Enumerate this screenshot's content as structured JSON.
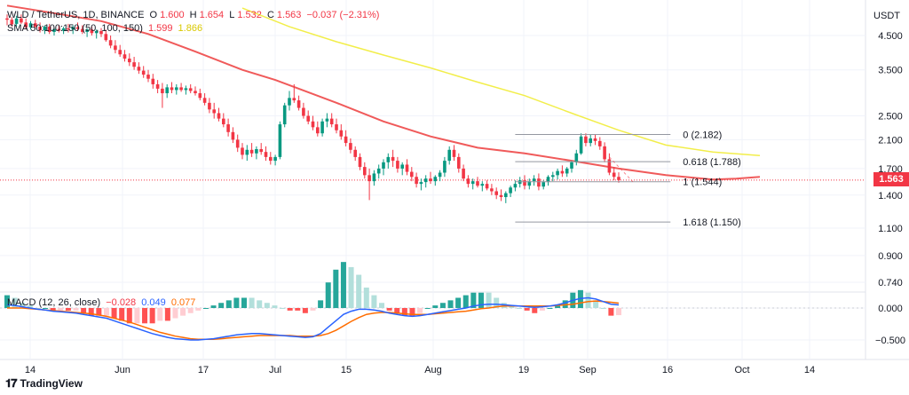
{
  "legend": {
    "symbol": "WLD / TetherUS, 1D, BINANCE",
    "o_label": "O",
    "o_value": "1.600",
    "h_label": "H",
    "h_value": "1.654",
    "l_label": "L",
    "l_value": "1.532",
    "c_label": "C",
    "c_value": "1.563",
    "change": "−0.037 (−2.31%)",
    "sma_label": "SMA 50:100:150 (50, 100, 150)",
    "sma_v1": "1.599",
    "sma_v2": "1.866",
    "macd_label": "MACD (12, 26, close)",
    "macd_v1": "−0.028",
    "macd_v2": "0.049",
    "macd_v3": "0.077"
  },
  "currency": "USDT",
  "price_tag": "1.563",
  "brand": "TradingView",
  "colors": {
    "up": "#089981",
    "down": "#f23645",
    "sma50": "#f05a5a",
    "sma100": "#f2ee4a",
    "macd": "#2962ff",
    "signal": "#ff6d00",
    "grid": "#f0f3fa",
    "text": "#131722"
  },
  "chart_data": {
    "type": "candlestick",
    "title": "WLD / TetherUS, 1D, BINANCE",
    "scale": "log",
    "price_axis_ticks": [
      4.5,
      3.5,
      2.5,
      2.1,
      1.7,
      1.4,
      1.1,
      0.9,
      0.74
    ],
    "time_axis_labels": [
      "14",
      "Jun",
      "17",
      "Jul",
      "15",
      "Aug",
      "19",
      "Sep",
      "16",
      "Oct",
      "14"
    ],
    "macd_axis_ticks": [
      0.0,
      -0.5
    ],
    "macd_axis_labels": [
      "0.000",
      "−0.500"
    ],
    "price_tick_labels": [
      "4.500",
      "3.500",
      "2.500",
      "2.100",
      "1.700",
      "1.400",
      "1.100",
      "0.900",
      "0.740"
    ],
    "ohlc": [
      [
        5.1,
        5.25,
        4.85,
        5.05
      ],
      [
        5.05,
        5.15,
        4.8,
        4.88
      ],
      [
        4.9,
        5.2,
        4.8,
        5.1
      ],
      [
        5.1,
        5.25,
        4.9,
        4.95
      ],
      [
        4.95,
        5.1,
        4.7,
        4.78
      ],
      [
        4.78,
        5.0,
        4.7,
        4.92
      ],
      [
        4.92,
        5.05,
        4.75,
        4.8
      ],
      [
        4.8,
        4.95,
        4.6,
        4.68
      ],
      [
        4.68,
        4.85,
        4.55,
        4.8
      ],
      [
        4.8,
        4.9,
        4.55,
        4.62
      ],
      [
        4.62,
        4.78,
        4.5,
        4.72
      ],
      [
        4.72,
        4.85,
        4.6,
        4.66
      ],
      [
        4.66,
        4.8,
        4.55,
        4.74
      ],
      [
        4.74,
        4.9,
        4.6,
        4.7
      ],
      [
        4.7,
        4.85,
        4.55,
        4.78
      ],
      [
        4.78,
        4.95,
        4.65,
        4.72
      ],
      [
        4.72,
        4.85,
        4.55,
        4.62
      ],
      [
        4.62,
        4.75,
        4.45,
        4.7
      ],
      [
        4.7,
        4.8,
        4.5,
        4.58
      ],
      [
        4.58,
        4.7,
        4.4,
        4.65
      ],
      [
        4.65,
        4.75,
        4.45,
        4.55
      ],
      [
        4.55,
        4.7,
        4.3,
        4.35
      ],
      [
        4.35,
        4.5,
        4.1,
        4.18
      ],
      [
        4.18,
        4.35,
        3.95,
        4.05
      ],
      [
        4.05,
        4.2,
        3.85,
        3.92
      ],
      [
        3.92,
        4.05,
        3.72,
        3.8
      ],
      [
        3.8,
        3.95,
        3.6,
        3.7
      ],
      [
        3.7,
        3.85,
        3.5,
        3.58
      ],
      [
        3.58,
        3.7,
        3.4,
        3.48
      ],
      [
        3.48,
        3.6,
        3.3,
        3.38
      ],
      [
        3.38,
        3.5,
        3.2,
        3.28
      ],
      [
        3.28,
        3.4,
        3.05,
        3.15
      ],
      [
        3.15,
        3.25,
        2.95,
        3.05
      ],
      [
        3.05,
        3.18,
        2.65,
        2.95
      ],
      [
        2.95,
        3.15,
        2.85,
        3.08
      ],
      [
        3.08,
        3.2,
        2.95,
        3.02
      ],
      [
        3.02,
        3.15,
        2.92,
        3.08
      ],
      [
        3.08,
        3.18,
        2.98,
        3.02
      ],
      [
        3.02,
        3.12,
        2.92,
        3.06
      ],
      [
        3.06,
        3.15,
        2.95,
        3.0
      ],
      [
        3.0,
        3.1,
        2.9,
        2.95
      ],
      [
        2.95,
        3.05,
        2.8,
        2.85
      ],
      [
        2.85,
        2.95,
        2.7,
        2.75
      ],
      [
        2.75,
        2.85,
        2.55,
        2.62
      ],
      [
        2.62,
        2.75,
        2.45,
        2.55
      ],
      [
        2.55,
        2.65,
        2.4,
        2.45
      ],
      [
        2.45,
        2.55,
        2.3,
        2.35
      ],
      [
        2.35,
        2.45,
        2.15,
        2.22
      ],
      [
        2.22,
        2.3,
        2.05,
        2.1
      ],
      [
        2.1,
        2.18,
        1.92,
        1.98
      ],
      [
        1.98,
        2.05,
        1.82,
        1.88
      ],
      [
        1.88,
        2.02,
        1.8,
        1.95
      ],
      [
        1.95,
        2.05,
        1.85,
        1.9
      ],
      [
        1.9,
        2.0,
        1.82,
        1.96
      ],
      [
        1.96,
        2.05,
        1.88,
        1.92
      ],
      [
        1.92,
        2.0,
        1.8,
        1.85
      ],
      [
        1.85,
        1.92,
        1.75,
        1.8
      ],
      [
        1.8,
        1.88,
        1.74,
        1.85
      ],
      [
        1.85,
        2.4,
        1.82,
        2.35
      ],
      [
        2.35,
        2.75,
        2.3,
        2.7
      ],
      [
        2.7,
        3.0,
        2.6,
        2.85
      ],
      [
        2.85,
        3.15,
        2.75,
        2.8
      ],
      [
        2.8,
        2.9,
        2.6,
        2.65
      ],
      [
        2.65,
        2.75,
        2.45,
        2.5
      ],
      [
        2.5,
        2.6,
        2.35,
        2.4
      ],
      [
        2.4,
        2.5,
        2.25,
        2.3
      ],
      [
        2.3,
        2.4,
        2.15,
        2.2
      ],
      [
        2.2,
        2.45,
        2.15,
        2.4
      ],
      [
        2.4,
        2.55,
        2.3,
        2.45
      ],
      [
        2.45,
        2.55,
        2.3,
        2.35
      ],
      [
        2.35,
        2.45,
        2.2,
        2.25
      ],
      [
        2.25,
        2.35,
        2.1,
        2.15
      ],
      [
        2.15,
        2.25,
        2.0,
        2.05
      ],
      [
        2.05,
        2.12,
        1.9,
        1.95
      ],
      [
        1.95,
        2.0,
        1.8,
        1.85
      ],
      [
        1.85,
        1.9,
        1.68,
        1.72
      ],
      [
        1.72,
        1.78,
        1.58,
        1.62
      ],
      [
        1.62,
        1.7,
        1.35,
        1.55
      ],
      [
        1.55,
        1.68,
        1.5,
        1.64
      ],
      [
        1.64,
        1.75,
        1.58,
        1.7
      ],
      [
        1.7,
        1.82,
        1.62,
        1.78
      ],
      [
        1.78,
        1.9,
        1.7,
        1.85
      ],
      [
        1.85,
        1.95,
        1.72,
        1.8
      ],
      [
        1.8,
        1.85,
        1.65,
        1.7
      ],
      [
        1.7,
        1.78,
        1.62,
        1.75
      ],
      [
        1.75,
        1.82,
        1.62,
        1.66
      ],
      [
        1.66,
        1.72,
        1.55,
        1.6
      ],
      [
        1.6,
        1.65,
        1.48,
        1.52
      ],
      [
        1.52,
        1.58,
        1.45,
        1.54
      ],
      [
        1.54,
        1.62,
        1.48,
        1.58
      ],
      [
        1.58,
        1.66,
        1.52,
        1.55
      ],
      [
        1.55,
        1.62,
        1.5,
        1.6
      ],
      [
        1.6,
        1.68,
        1.55,
        1.65
      ],
      [
        1.65,
        1.85,
        1.6,
        1.8
      ],
      [
        1.8,
        2.0,
        1.75,
        1.95
      ],
      [
        1.95,
        2.02,
        1.8,
        1.85
      ],
      [
        1.85,
        1.9,
        1.65,
        1.7
      ],
      [
        1.7,
        1.75,
        1.55,
        1.58
      ],
      [
        1.58,
        1.62,
        1.48,
        1.52
      ],
      [
        1.52,
        1.58,
        1.46,
        1.55
      ],
      [
        1.55,
        1.6,
        1.48,
        1.5
      ],
      [
        1.5,
        1.55,
        1.44,
        1.52
      ],
      [
        1.52,
        1.56,
        1.45,
        1.47
      ],
      [
        1.47,
        1.52,
        1.4,
        1.44
      ],
      [
        1.44,
        1.48,
        1.36,
        1.4
      ],
      [
        1.4,
        1.46,
        1.34,
        1.38
      ],
      [
        1.38,
        1.44,
        1.32,
        1.42
      ],
      [
        1.42,
        1.5,
        1.38,
        1.48
      ],
      [
        1.48,
        1.56,
        1.44,
        1.52
      ],
      [
        1.52,
        1.6,
        1.48,
        1.56
      ],
      [
        1.56,
        1.62,
        1.46,
        1.5
      ],
      [
        1.5,
        1.58,
        1.46,
        1.55
      ],
      [
        1.55,
        1.62,
        1.5,
        1.58
      ],
      [
        1.58,
        1.64,
        1.45,
        1.49
      ],
      [
        1.49,
        1.56,
        1.46,
        1.54
      ],
      [
        1.54,
        1.62,
        1.5,
        1.6
      ],
      [
        1.6,
        1.66,
        1.55,
        1.62
      ],
      [
        1.62,
        1.7,
        1.57,
        1.67
      ],
      [
        1.67,
        1.74,
        1.6,
        1.64
      ],
      [
        1.64,
        1.72,
        1.6,
        1.7
      ],
      [
        1.7,
        1.8,
        1.65,
        1.78
      ],
      [
        1.78,
        1.95,
        1.74,
        1.9
      ],
      [
        1.9,
        2.2,
        1.88,
        2.15
      ],
      [
        2.15,
        2.2,
        2.0,
        2.05
      ],
      [
        2.05,
        2.18,
        2.0,
        2.12
      ],
      [
        2.12,
        2.18,
        2.02,
        2.08
      ],
      [
        2.08,
        2.14,
        1.95,
        2.0
      ],
      [
        2.0,
        2.06,
        1.78,
        1.82
      ],
      [
        1.82,
        1.9,
        1.62,
        1.65
      ],
      [
        1.65,
        1.72,
        1.56,
        1.6
      ],
      [
        1.6,
        1.654,
        1.532,
        1.563
      ]
    ],
    "sma50": [
      [
        0,
        5.6
      ],
      [
        10,
        5.3
      ],
      [
        20,
        5.0
      ],
      [
        30,
        4.55
      ],
      [
        40,
        4.0
      ],
      [
        50,
        3.5
      ],
      [
        57,
        3.25
      ],
      [
        62,
        3.05
      ],
      [
        70,
        2.75
      ],
      [
        80,
        2.4
      ],
      [
        90,
        2.15
      ],
      [
        100,
        1.98
      ],
      [
        110,
        1.9
      ],
      [
        120,
        1.8
      ],
      [
        130,
        1.7
      ],
      [
        140,
        1.62
      ],
      [
        150,
        1.57
      ],
      [
        155,
        1.58
      ],
      [
        160,
        1.6
      ]
    ],
    "sma100": [
      [
        50,
        5.5
      ],
      [
        60,
        4.8
      ],
      [
        70,
        4.3
      ],
      [
        80,
        3.9
      ],
      [
        90,
        3.55
      ],
      [
        100,
        3.2
      ],
      [
        110,
        2.9
      ],
      [
        120,
        2.55
      ],
      [
        130,
        2.25
      ],
      [
        140,
        2.02
      ],
      [
        150,
        1.92
      ],
      [
        160,
        1.87
      ]
    ],
    "fib_levels": [
      {
        "label": "0 (2.182)",
        "value": 2.182
      },
      {
        "label": "0.618 (1.788)",
        "value": 1.788
      },
      {
        "label": "1 (1.544)",
        "value": 1.544
      },
      {
        "label": "1.618 (1.150)",
        "value": 1.15
      }
    ],
    "macd": [
      0.05,
      0.04,
      0.02,
      0.0,
      -0.02,
      -0.03,
      -0.05,
      -0.06,
      -0.07,
      -0.08,
      -0.1,
      -0.12,
      -0.14,
      -0.16,
      -0.2,
      -0.24,
      -0.28,
      -0.32,
      -0.36,
      -0.4,
      -0.43,
      -0.46,
      -0.48,
      -0.49,
      -0.5,
      -0.5,
      -0.49,
      -0.48,
      -0.46,
      -0.44,
      -0.42,
      -0.41,
      -0.4,
      -0.4,
      -0.41,
      -0.42,
      -0.43,
      -0.44,
      -0.45,
      -0.46,
      -0.45,
      -0.4,
      -0.3,
      -0.2,
      -0.1,
      -0.05,
      -0.02,
      -0.02,
      -0.03,
      -0.05,
      -0.08,
      -0.1,
      -0.12,
      -0.13,
      -0.12,
      -0.1,
      -0.08,
      -0.06,
      -0.04,
      -0.02,
      0.0,
      0.03,
      0.05,
      0.06,
      0.06,
      0.05,
      0.04,
      0.03,
      0.02,
      0.01,
      0.02,
      0.03,
      0.05,
      0.08,
      0.12,
      0.15,
      0.16,
      0.14,
      0.1,
      0.06,
      0.049
    ],
    "signal": [
      0.0,
      0.0,
      0.0,
      -0.01,
      -0.02,
      -0.03,
      -0.04,
      -0.05,
      -0.06,
      -0.07,
      -0.08,
      -0.09,
      -0.11,
      -0.13,
      -0.16,
      -0.19,
      -0.22,
      -0.26,
      -0.3,
      -0.34,
      -0.38,
      -0.41,
      -0.44,
      -0.46,
      -0.48,
      -0.49,
      -0.49,
      -0.49,
      -0.48,
      -0.47,
      -0.46,
      -0.45,
      -0.44,
      -0.43,
      -0.43,
      -0.43,
      -0.43,
      -0.43,
      -0.44,
      -0.44,
      -0.44,
      -0.43,
      -0.4,
      -0.35,
      -0.28,
      -0.21,
      -0.15,
      -0.1,
      -0.08,
      -0.07,
      -0.07,
      -0.08,
      -0.09,
      -0.1,
      -0.1,
      -0.1,
      -0.09,
      -0.08,
      -0.07,
      -0.06,
      -0.05,
      -0.03,
      -0.01,
      0.0,
      0.02,
      0.03,
      0.03,
      0.03,
      0.03,
      0.03,
      0.03,
      0.03,
      0.04,
      0.05,
      0.06,
      0.08,
      0.1,
      0.11,
      0.1,
      0.09,
      0.077
    ]
  }
}
